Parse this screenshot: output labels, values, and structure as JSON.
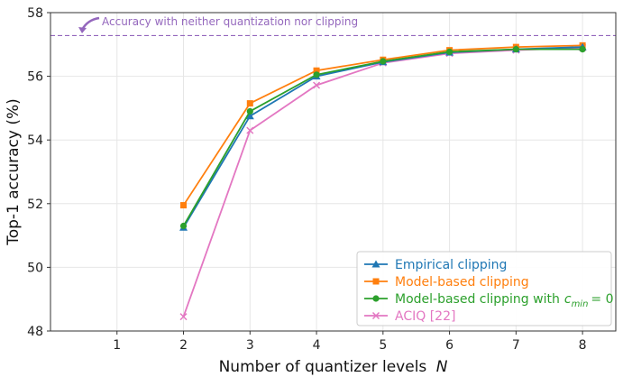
{
  "chart_data": {
    "type": "line",
    "title": "",
    "xlabel": "Number of quantizer levels",
    "xlabel_var": "N",
    "ylabel": "Top-1 accuracy (%)",
    "xlim": [
      0,
      8.5
    ],
    "ylim": [
      48,
      58
    ],
    "xticks": [
      1,
      2,
      3,
      4,
      5,
      6,
      7,
      8
    ],
    "yticks": [
      48,
      50,
      52,
      54,
      56,
      58
    ],
    "grid": true,
    "legend_position": "bottom-right",
    "reference_line": {
      "y": 57.28,
      "label": "Accuracy with neither quantization nor clipping",
      "color": "#9467bd"
    },
    "x": [
      2,
      3,
      4,
      5,
      6,
      7,
      8
    ],
    "series": [
      {
        "name": "Empirical clipping",
        "color": "#1f77b4",
        "marker": "triangle",
        "values": [
          51.25,
          54.75,
          56.0,
          56.45,
          56.75,
          56.85,
          56.92
        ]
      },
      {
        "name": "Model-based clipping",
        "color": "#ff7f0e",
        "marker": "square",
        "values": [
          51.95,
          55.15,
          56.18,
          56.52,
          56.82,
          56.92,
          56.97
        ]
      },
      {
        "name": "Model-based clipping with",
        "name_math": "c_min = 0",
        "color": "#2ca02c",
        "marker": "circle",
        "values": [
          51.3,
          54.9,
          56.05,
          56.47,
          56.77,
          56.85,
          56.85
        ]
      },
      {
        "name": "ACIQ [22]",
        "color": "#e377c2",
        "marker": "x",
        "values": [
          48.45,
          54.3,
          55.72,
          56.42,
          56.72,
          56.82,
          56.9
        ]
      }
    ]
  }
}
